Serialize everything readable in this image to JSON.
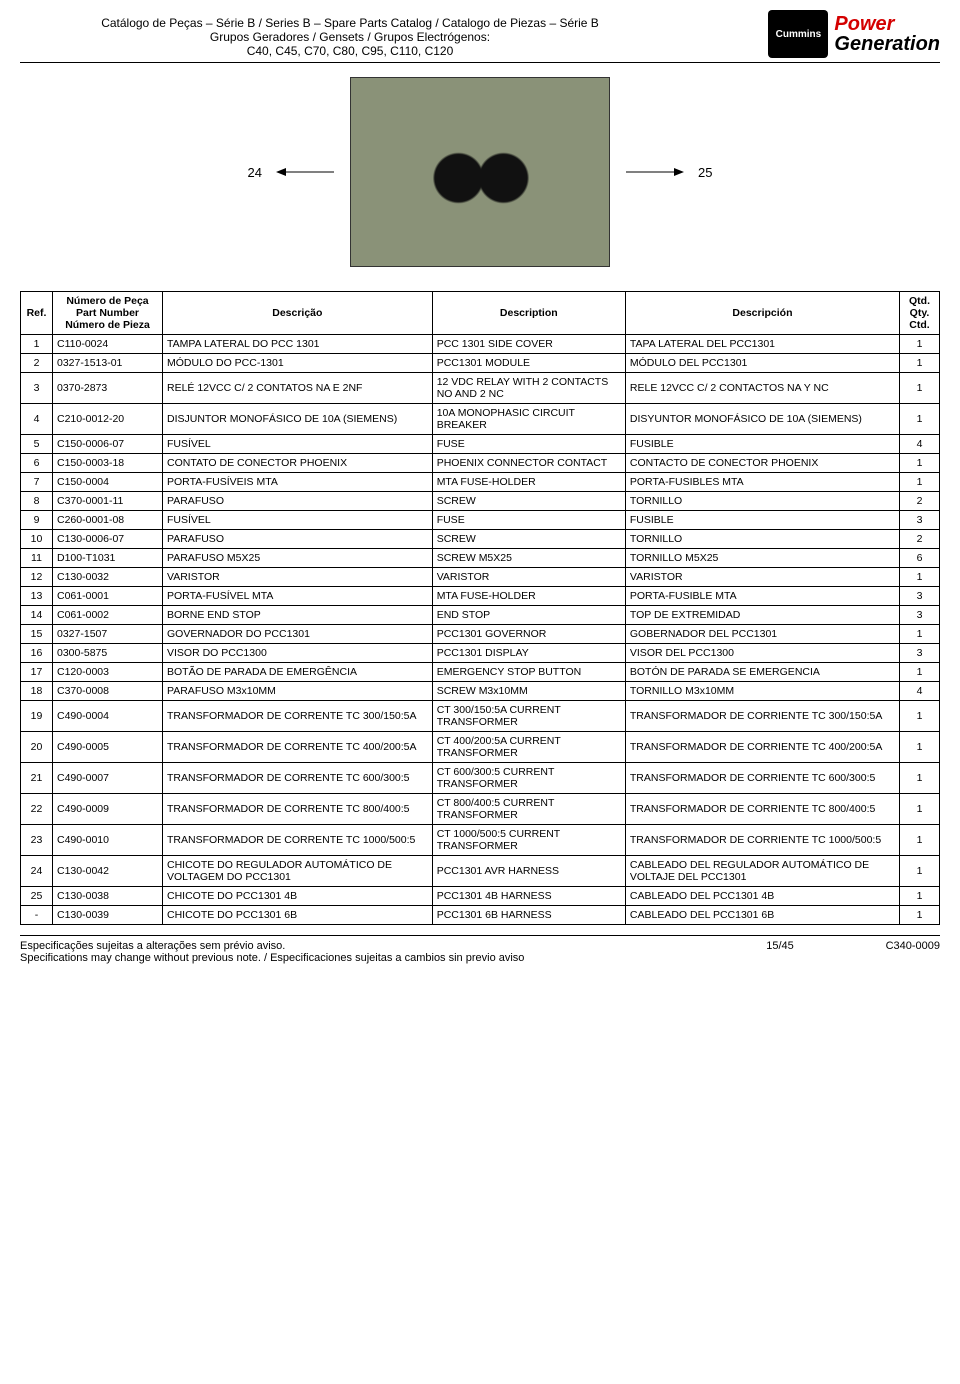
{
  "header": {
    "line1": "Catálogo de Peças – Série B / Series B – Spare Parts Catalog / Catalogo de Piezas – Série B",
    "line2": "Grupos Geradores / Gensets / Grupos Electrógenos:",
    "line3": "C40, C45, C70, C80, C95, C110, C120",
    "logo_text": "Cummins",
    "power": "Power",
    "gen": "Generation"
  },
  "photo": {
    "left_callout": "24",
    "right_callout": "25"
  },
  "table": {
    "headers": {
      "ref": "Ref.",
      "part": "Número de Peça\nPart Number\nNúmero de Pieza",
      "desc_pt": "Descrição",
      "desc_en": "Description",
      "desc_es": "Descripción",
      "qty": "Qtd.\nQty.\nCtd."
    },
    "rows": [
      {
        "ref": "1",
        "part": "C110-0024",
        "pt": "TAMPA LATERAL DO PCC 1301",
        "en": "PCC 1301 SIDE COVER",
        "es": "TAPA LATERAL DEL PCC1301",
        "qty": "1"
      },
      {
        "ref": "2",
        "part": "0327-1513-01",
        "pt": "MÓDULO DO PCC-1301",
        "en": "PCC1301 MODULE",
        "es": "MÓDULO DEL PCC1301",
        "qty": "1"
      },
      {
        "ref": "3",
        "part": "0370-2873",
        "pt": "RELÉ 12VCC C/ 2 CONTATOS NA E 2NF",
        "en": "12 VDC RELAY WITH 2 CONTACTS NO AND 2 NC",
        "es": "RELE 12VCC C/ 2 CONTACTOS NA Y NC",
        "qty": "1"
      },
      {
        "ref": "4",
        "part": "C210-0012-20",
        "pt": "DISJUNTOR MONOFÁSICO DE 10A (SIEMENS)",
        "en": "10A MONOPHASIC CIRCUIT BREAKER",
        "es": "DISYUNTOR MONOFÁSICO DE 10A (SIEMENS)",
        "qty": "1"
      },
      {
        "ref": "5",
        "part": "C150-0006-07",
        "pt": "FUSÍVEL",
        "en": "FUSE",
        "es": "FUSIBLE",
        "qty": "4"
      },
      {
        "ref": "6",
        "part": "C150-0003-18",
        "pt": "CONTATO DE CONECTOR PHOENIX",
        "en": "PHOENIX CONNECTOR CONTACT",
        "es": "CONTACTO DE CONECTOR PHOENIX",
        "qty": "1"
      },
      {
        "ref": "7",
        "part": "C150-0004",
        "pt": "PORTA-FUSÍVEIS MTA",
        "en": "MTA FUSE-HOLDER",
        "es": "PORTA-FUSIBLES MTA",
        "qty": "1"
      },
      {
        "ref": "8",
        "part": "C370-0001-11",
        "pt": "PARAFUSO",
        "en": "SCREW",
        "es": "TORNILLO",
        "qty": "2"
      },
      {
        "ref": "9",
        "part": "C260-0001-08",
        "pt": "FUSÍVEL",
        "en": "FUSE",
        "es": "FUSIBLE",
        "qty": "3"
      },
      {
        "ref": "10",
        "part": "C130-0006-07",
        "pt": "PARAFUSO",
        "en": "SCREW",
        "es": "TORNILLO",
        "qty": "2"
      },
      {
        "ref": "11",
        "part": "D100-T1031",
        "pt": "PARAFUSO M5X25",
        "en": "SCREW M5X25",
        "es": "TORNILLO M5X25",
        "qty": "6"
      },
      {
        "ref": "12",
        "part": "C130-0032",
        "pt": "VARISTOR",
        "en": "VARISTOR",
        "es": "VARISTOR",
        "qty": "1"
      },
      {
        "ref": "13",
        "part": "C061-0001",
        "pt": "PORTA-FUSÍVEL MTA",
        "en": "MTA FUSE-HOLDER",
        "es": "PORTA-FUSIBLE MTA",
        "qty": "3"
      },
      {
        "ref": "14",
        "part": "C061-0002",
        "pt": "BORNE END STOP",
        "en": "END STOP",
        "es": "TOP DE EXTREMIDAD",
        "qty": "3"
      },
      {
        "ref": "15",
        "part": "0327-1507",
        "pt": "GOVERNADOR DO PCC1301",
        "en": "PCC1301 GOVERNOR",
        "es": "GOBERNADOR DEL PCC1301",
        "qty": "1"
      },
      {
        "ref": "16",
        "part": "0300-5875",
        "pt": "VISOR DO PCC1300",
        "en": "PCC1301 DISPLAY",
        "es": "VISOR DEL PCC1300",
        "qty": "3"
      },
      {
        "ref": "17",
        "part": "C120-0003",
        "pt": "BOTÃO DE PARADA DE EMERGÊNCIA",
        "en": "EMERGENCY STOP BUTTON",
        "es": "BOTÓN DE PARADA SE EMERGENCIA",
        "qty": "1"
      },
      {
        "ref": "18",
        "part": "C370-0008",
        "pt": "PARAFUSO M3x10MM",
        "en": "SCREW M3x10MM",
        "es": "TORNILLO M3x10MM",
        "qty": "4"
      },
      {
        "ref": "19",
        "part": "C490-0004",
        "pt": "TRANSFORMADOR DE CORRENTE TC 300/150:5A",
        "en": "CT 300/150:5A CURRENT TRANSFORMER",
        "es": "TRANSFORMADOR DE CORRIENTE TC 300/150:5A",
        "qty": "1"
      },
      {
        "ref": "20",
        "part": "C490-0005",
        "pt": "TRANSFORMADOR DE CORRENTE TC 400/200:5A",
        "en": "CT 400/200:5A CURRENT TRANSFORMER",
        "es": "TRANSFORMADOR DE CORRIENTE TC 400/200:5A",
        "qty": "1"
      },
      {
        "ref": "21",
        "part": "C490-0007",
        "pt": "TRANSFORMADOR DE CORRENTE TC 600/300:5",
        "en": "CT 600/300:5 CURRENT TRANSFORMER",
        "es": "TRANSFORMADOR DE CORRIENTE TC 600/300:5",
        "qty": "1"
      },
      {
        "ref": "22",
        "part": "C490-0009",
        "pt": "TRANSFORMADOR DE CORRENTE TC 800/400:5",
        "en": "CT 800/400:5 CURRENT TRANSFORMER",
        "es": "TRANSFORMADOR DE CORRIENTE TC 800/400:5",
        "qty": "1"
      },
      {
        "ref": "23",
        "part": "C490-0010",
        "pt": "TRANSFORMADOR DE CORRENTE TC 1000/500:5",
        "en": "CT 1000/500:5 CURRENT TRANSFORMER",
        "es": "TRANSFORMADOR DE CORRIENTE TC 1000/500:5",
        "qty": "1"
      },
      {
        "ref": "24",
        "part": "C130-0042",
        "pt": "CHICOTE DO REGULADOR AUTOMÁTICO DE VOLTAGEM DO PCC1301",
        "en": "PCC1301 AVR HARNESS",
        "es": "CABLEADO DEL REGULADOR AUTOMÁTICO DE VOLTAJE DEL PCC1301",
        "qty": "1"
      },
      {
        "ref": "25",
        "part": "C130-0038",
        "pt": "CHICOTE DO PCC1301 4B",
        "en": "PCC1301 4B HARNESS",
        "es": "CABLEADO DEL PCC1301 4B",
        "qty": "1"
      },
      {
        "ref": "-",
        "part": "C130-0039",
        "pt": "CHICOTE DO PCC1301 6B",
        "en": "PCC1301 6B HARNESS",
        "es": "CABLEADO DEL PCC1301 6B",
        "qty": "1"
      }
    ]
  },
  "footer": {
    "left1": "Especificações sujeitas a alterações sem prévio aviso.",
    "left2": "Specifications may change without previous note. / Especificaciones sujeitas a cambios sin previo aviso",
    "page": "15/45",
    "doc": "C340-0009"
  }
}
